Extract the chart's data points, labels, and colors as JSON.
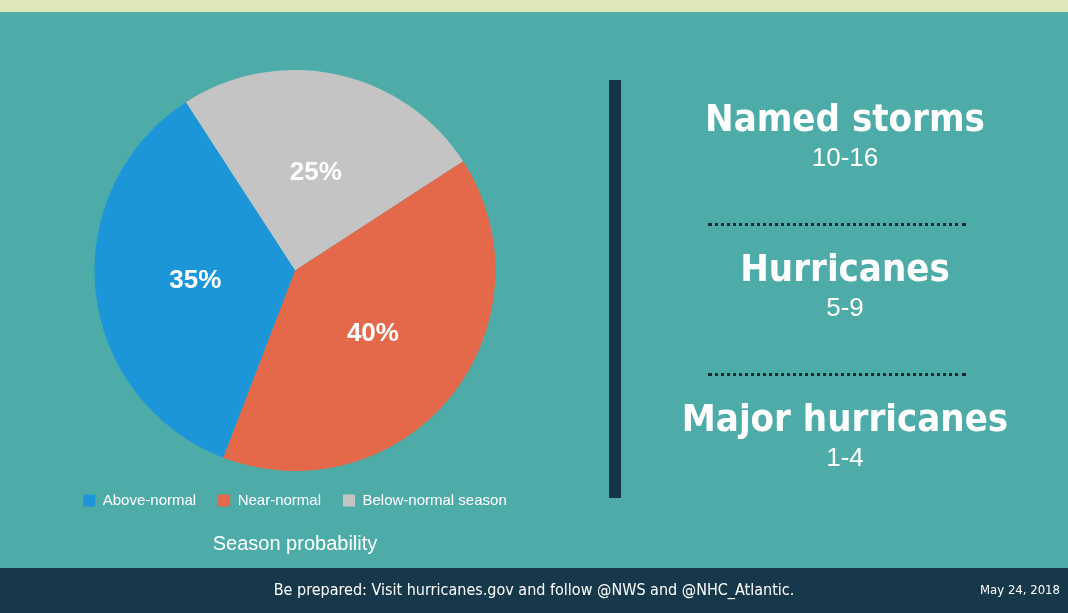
{
  "chart_data": [
    {
      "type": "pie",
      "title": "Season probability",
      "categories": [
        "Above-normal",
        "Near-normal",
        "Below-normal season"
      ],
      "values": [
        35,
        40,
        25
      ],
      "colors": [
        "#1c96d8",
        "#e3694a",
        "#c4c4c4"
      ],
      "value_labels": [
        "35%",
        "40%",
        "25%"
      ],
      "legend": "bottom",
      "annotations": [
        "Be prepared: Visit hurricanes.gov and follow @NWS and @NHC_Atlantic.",
        "May 24, 2018"
      ]
    },
    {
      "type": "other",
      "annotations": [
        "Named storms",
        "10-16",
        "Hurricanes",
        "5-9",
        "Major hurricanes",
        "1-4"
      ]
    }
  ]
}
